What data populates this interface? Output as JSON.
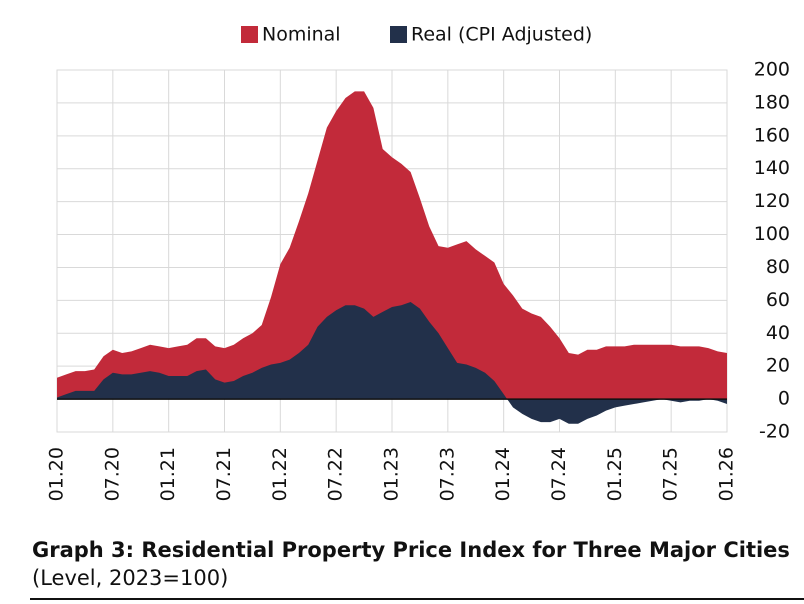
{
  "chart_data": {
    "type": "area",
    "caption_title": "Graph 3: Residential Property Price Index for Three Major Cities",
    "caption_subtitle": "(Level, 2023=100)",
    "categories": [
      "01.20",
      null,
      null,
      null,
      null,
      null,
      "07.20",
      null,
      null,
      null,
      null,
      null,
      "01.21",
      null,
      null,
      null,
      null,
      null,
      "07.21",
      null,
      null,
      null,
      null,
      null,
      "01.22",
      null,
      null,
      null,
      null,
      null,
      "07.22",
      null,
      null,
      null,
      null,
      null,
      "01.23",
      null,
      null,
      null,
      null,
      null,
      "07.23",
      null,
      null,
      null,
      null,
      null,
      "01.24",
      null,
      null,
      null,
      null,
      null,
      "07.24",
      null,
      null,
      null,
      null,
      null,
      "01.25",
      null,
      null,
      null,
      null,
      null,
      "07.25",
      null,
      null,
      null,
      null,
      null,
      "01.26"
    ],
    "series": [
      {
        "name": "Nominal",
        "color": "#c22a3a",
        "values": [
          13,
          15,
          17,
          17,
          18,
          26,
          30,
          28,
          29,
          31,
          33,
          32,
          31,
          32,
          33,
          37,
          37,
          32,
          31,
          33,
          37,
          40,
          45,
          62,
          82,
          92,
          108,
          125,
          145,
          165,
          175,
          183,
          187,
          187,
          177,
          152,
          147,
          143,
          138,
          122,
          105,
          93,
          92,
          94,
          96,
          91,
          87,
          83,
          70,
          63,
          55,
          52,
          50,
          44,
          37,
          28,
          27,
          30,
          30,
          32,
          32,
          32,
          33,
          33,
          33,
          33,
          33,
          32,
          32,
          32,
          31,
          29,
          28
        ]
      },
      {
        "name": "Real (CPI Adjusted)",
        "color": "#22304a",
        "values": [
          1,
          3,
          5,
          5,
          5,
          12,
          16,
          15,
          15,
          16,
          17,
          16,
          14,
          14,
          14,
          17,
          18,
          12,
          10,
          11,
          14,
          16,
          19,
          21,
          22,
          24,
          28,
          33,
          44,
          50,
          54,
          57,
          57,
          55,
          50,
          53,
          56,
          57,
          59,
          55,
          47,
          40,
          31,
          22,
          21,
          19,
          16,
          11,
          3,
          -5,
          -9,
          -12,
          -14,
          -14,
          -12,
          -15,
          -15,
          -12,
          -10,
          -7,
          -5,
          -4,
          -3,
          -2,
          -1,
          0,
          -1,
          -2,
          -1,
          -1,
          0,
          -1,
          -3
        ]
      }
    ],
    "ylim": [
      -20,
      200
    ],
    "yticks": [
      -20,
      0,
      20,
      40,
      60,
      80,
      100,
      120,
      140,
      160,
      180,
      200
    ],
    "grid": true
  }
}
